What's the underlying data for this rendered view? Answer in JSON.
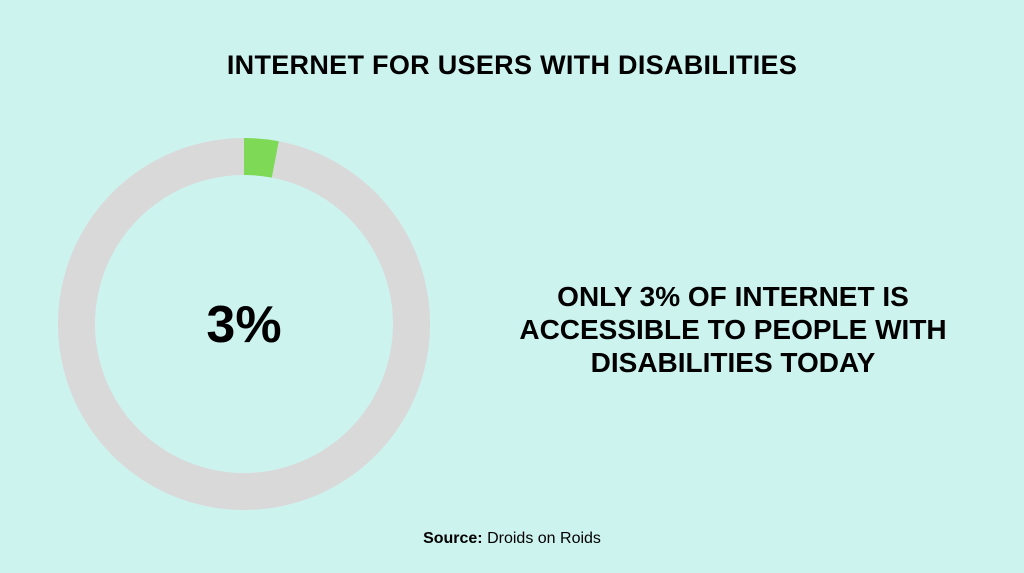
{
  "title": "INTERNET FOR USERS WITH DISABILITIES",
  "statement": "ONLY 3% OF INTERNET IS ACCESSIBLE TO PEOPLE WITH DISABILITIES TODAY",
  "source": {
    "label": "Source:",
    "name": "Droids on Roids"
  },
  "colors": {
    "background": "#cdf3ef",
    "accessible": "#7ed957",
    "remaining": "#d9d9d9"
  },
  "chart_data": {
    "type": "pie",
    "donut": true,
    "center_label": "3%",
    "slices": [
      {
        "value": 3,
        "color": "#7ed957"
      },
      {
        "value": 97,
        "color": "#d9d9d9"
      }
    ]
  }
}
